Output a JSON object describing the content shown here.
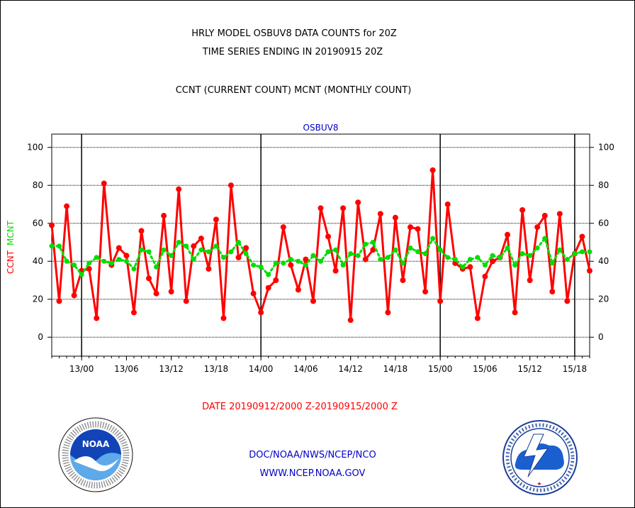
{
  "header": {
    "title_line1": "HRLY MODEL OSBUV8 DATA COUNTS for 20Z",
    "title_line2": "TIME SERIES ENDING IN 20190915 20Z",
    "subtitle": "CCNT (CURRENT COUNT) MCNT (MONTHLY COUNT)"
  },
  "footer": {
    "date_range": "DATE 20190912/2000 Z-20190915/2000 Z",
    "credit_line1": "DOC/NOAA/NWS/NCEP/NCO",
    "credit_line2": "WWW.NCEP.NOAA.GOV"
  },
  "logos": {
    "left": "noaa-logo",
    "left_text": "NOAA",
    "right": "national-weather-service-logo"
  },
  "chart_data": {
    "type": "line",
    "title": "OSBUV8",
    "ylabel_left": "CCNT",
    "ylabel_right": "MCNT",
    "ylim": [
      -10,
      107
    ],
    "yticks": [
      0,
      20,
      40,
      60,
      80,
      100
    ],
    "grid": true,
    "xticks": [
      "13/00",
      "13/06",
      "13/12",
      "13/18",
      "14/00",
      "14/06",
      "14/12",
      "14/18",
      "15/00",
      "15/06",
      "15/12",
      "15/18"
    ],
    "x_hours": {
      "start": 20,
      "end": 92
    },
    "day_boundaries_hours": [
      24,
      48,
      72,
      90
    ],
    "series": [
      {
        "name": "CCNT",
        "color": "#ff0000",
        "style": "solid",
        "values": [
          59,
          19,
          69,
          22,
          35,
          36,
          10,
          81,
          38,
          47,
          43,
          13,
          56,
          31,
          23,
          64,
          24,
          78,
          19,
          48,
          52,
          36,
          62,
          10,
          80,
          42,
          47,
          23,
          13,
          26,
          30,
          58,
          38,
          25,
          41,
          19,
          68,
          53,
          35,
          68,
          9,
          71,
          41,
          46,
          65,
          13,
          63,
          30,
          58,
          57,
          24,
          88,
          19,
          70,
          39,
          36,
          37,
          10,
          32,
          40,
          42,
          54,
          13,
          67,
          30,
          58,
          64,
          24,
          65,
          19,
          44,
          53,
          35
        ]
      },
      {
        "name": "MCNT",
        "color": "#00dd00",
        "style": "dotted",
        "values": [
          48,
          48,
          40,
          38,
          33,
          39,
          42,
          40,
          39,
          41,
          40,
          36,
          46,
          45,
          37,
          46,
          43,
          50,
          48,
          41,
          46,
          45,
          48,
          42,
          45,
          50,
          44,
          38,
          37,
          33,
          39,
          39,
          41,
          40,
          38,
          43,
          40,
          45,
          46,
          38,
          44,
          43,
          49,
          50,
          41,
          42,
          46,
          39,
          47,
          45,
          44,
          52,
          46,
          42,
          41,
          37,
          41,
          42,
          38,
          43,
          42,
          47,
          38,
          44,
          43,
          47,
          52,
          39,
          46,
          41,
          44,
          45,
          45
        ]
      }
    ]
  }
}
